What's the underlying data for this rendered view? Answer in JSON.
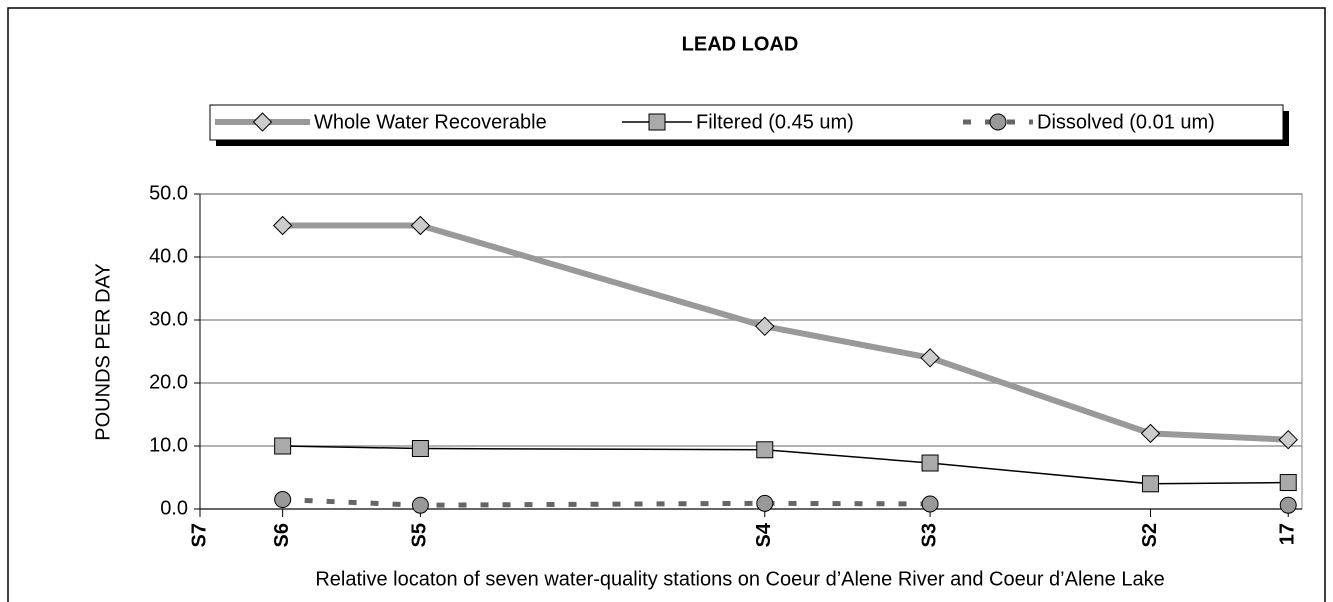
{
  "chart_data": {
    "type": "line",
    "title": "LEAD LOAD",
    "x_label": "Relative locaton of seven water-quality stations on Coeur d’Alene River and Coeur d’Alene Lake",
    "y_label": "POUNDS PER DAY",
    "x": [
      6,
      16,
      41,
      53,
      69,
      79
    ],
    "xlim": [
      0,
      80
    ],
    "xticks": [
      {
        "value": 0,
        "label": "S7"
      },
      {
        "value": 6,
        "label": "S6"
      },
      {
        "value": 16,
        "label": "S5"
      },
      {
        "value": 41,
        "label": "S4"
      },
      {
        "value": 53,
        "label": "S3"
      },
      {
        "value": 69,
        "label": "S2"
      },
      {
        "value": 79,
        "label": "17"
      }
    ],
    "ylim": [
      0,
      50
    ],
    "yticks": [
      {
        "value": 0,
        "label": "0.0"
      },
      {
        "value": 10,
        "label": "10.0"
      },
      {
        "value": 20,
        "label": "20.0"
      },
      {
        "value": 30,
        "label": "30.0"
      },
      {
        "value": 40,
        "label": "40.0"
      },
      {
        "value": 50,
        "label": "50.0"
      }
    ],
    "grid": true,
    "legend": "top",
    "series": [
      {
        "name": "Whole Water Recoverable",
        "color": "#999999",
        "values": [
          45,
          45,
          29,
          24,
          12,
          11
        ]
      },
      {
        "name": "Filtered (0.45 um)",
        "color": "#000000",
        "values": [
          10,
          9.6,
          9.4,
          7.3,
          4.0,
          4.2
        ]
      },
      {
        "name": "Dissolved (0.01 um)",
        "color": "#666666",
        "values": [
          1.5,
          0.6,
          0.9,
          0.8,
          null,
          0.6
        ]
      }
    ]
  }
}
